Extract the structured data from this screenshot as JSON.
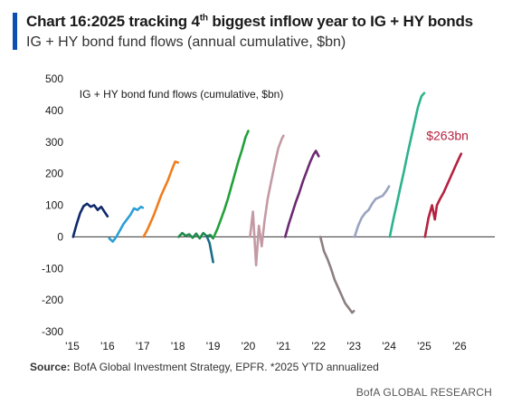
{
  "title": {
    "text": "Chart 16:2025 tracking 4",
    "sup": "th",
    "rest": " biggest inflow year to IG + HY bonds"
  },
  "subtitle": "IG + HY bond fund flows (annual cumulative, $bn)",
  "footer": {
    "label": "Source:",
    "text": " BofA Global Investment Strategy, EPFR. *2025 YTD annualized"
  },
  "brand": "BofA GLOBAL RESEARCH",
  "colors": {
    "accent": "#0b4fb3",
    "highlight": "#b5213e"
  },
  "chart_data": {
    "type": "line",
    "title": "IG + HY bond fund flows (cumulative, $bn)",
    "xlabel": "",
    "ylabel": "",
    "xlim": [
      2015,
      2027
    ],
    "ylim": [
      -300,
      500
    ],
    "yticks": [
      -300,
      -200,
      -100,
      0,
      100,
      200,
      300,
      400,
      500
    ],
    "xticks": [
      {
        "v": 2015,
        "label": "'15"
      },
      {
        "v": 2016,
        "label": "'16"
      },
      {
        "v": 2017,
        "label": "'17"
      },
      {
        "v": 2018,
        "label": "'18"
      },
      {
        "v": 2019,
        "label": "'19"
      },
      {
        "v": 2020,
        "label": "'20"
      },
      {
        "v": 2021,
        "label": "'21"
      },
      {
        "v": 2022,
        "label": "'22"
      },
      {
        "v": 2023,
        "label": "'23"
      },
      {
        "v": 2024,
        "label": "'24"
      },
      {
        "v": 2025,
        "label": "'25"
      },
      {
        "v": 2026,
        "label": "'26"
      }
    ],
    "grid": false,
    "annotation": {
      "text": "$263bn",
      "x": 2025.95,
      "y": 263
    },
    "series": [
      {
        "year": 2015,
        "color": "#0d2a6b",
        "x": [
          2015.02,
          2015.12,
          2015.22,
          2015.32,
          2015.42,
          2015.52,
          2015.62,
          2015.72,
          2015.82,
          2015.92,
          2016.0
        ],
        "y": [
          0,
          40,
          75,
          97,
          105,
          95,
          100,
          85,
          95,
          78,
          65
        ]
      },
      {
        "year": 2016,
        "color": "#2a9fd6",
        "x": [
          2016.05,
          2016.15,
          2016.25,
          2016.35,
          2016.45,
          2016.55,
          2016.65,
          2016.75,
          2016.85,
          2016.95,
          2017.0
        ],
        "y": [
          -5,
          -15,
          0,
          20,
          40,
          55,
          70,
          90,
          85,
          95,
          92
        ]
      },
      {
        "year": 2017,
        "color": "#f07d1e",
        "x": [
          2017.02,
          2017.12,
          2017.22,
          2017.32,
          2017.42,
          2017.52,
          2017.62,
          2017.72,
          2017.82,
          2017.92,
          2018.0
        ],
        "y": [
          0,
          20,
          45,
          70,
          100,
          130,
          155,
          180,
          210,
          238,
          235
        ]
      },
      {
        "year": 2018,
        "color": "#1f8a4c",
        "x": [
          2018.02,
          2018.12,
          2018.22,
          2018.32,
          2018.42,
          2018.52,
          2018.62,
          2018.72,
          2018.82,
          2018.92,
          2019.0
        ],
        "y": [
          0,
          12,
          3,
          8,
          -3,
          10,
          -5,
          12,
          2,
          6,
          -5
        ]
      },
      {
        "year": 2019,
        "color": "#1b6d85",
        "x": [
          2018.82,
          2018.9,
          2019.0
        ],
        "y": [
          2,
          -20,
          -80
        ]
      },
      {
        "year": 2020,
        "color": "#23a03a",
        "x": [
          2019.02,
          2019.12,
          2019.22,
          2019.32,
          2019.42,
          2019.52,
          2019.62,
          2019.72,
          2019.82,
          2019.92,
          2020.0
        ],
        "y": [
          0,
          25,
          55,
          85,
          120,
          160,
          200,
          240,
          275,
          315,
          335
        ]
      },
      {
        "year": 2020,
        "color": "#c39aa3",
        "x": [
          2020.05,
          2020.13,
          2020.22,
          2020.3,
          2020.38,
          2020.46,
          2020.55,
          2020.65,
          2020.75,
          2020.85,
          2020.95,
          2021.0
        ],
        "y": [
          0,
          80,
          -90,
          35,
          -30,
          50,
          120,
          175,
          230,
          280,
          310,
          320
        ]
      },
      {
        "year": 2021,
        "color": "#6b2a72",
        "x": [
          2021.05,
          2021.15,
          2021.25,
          2021.35,
          2021.45,
          2021.55,
          2021.65,
          2021.75,
          2021.85,
          2021.92,
          2022.0
        ],
        "y": [
          0,
          40,
          75,
          110,
          140,
          175,
          205,
          235,
          260,
          272,
          255
        ]
      },
      {
        "year": 2022,
        "color": "#8c7f80",
        "x": [
          2022.05,
          2022.15,
          2022.25,
          2022.35,
          2022.45,
          2022.55,
          2022.65,
          2022.75,
          2022.85,
          2022.95,
          2023.0
        ],
        "y": [
          0,
          -45,
          -70,
          -100,
          -135,
          -160,
          -185,
          -210,
          -225,
          -240,
          -235
        ]
      },
      {
        "year": 2023,
        "color": "#9aa3c0",
        "x": [
          2023.02,
          2023.12,
          2023.22,
          2023.32,
          2023.42,
          2023.52,
          2023.62,
          2023.72,
          2023.82,
          2023.92,
          2024.0
        ],
        "y": [
          0,
          35,
          60,
          75,
          85,
          105,
          120,
          125,
          130,
          145,
          160
        ]
      },
      {
        "year": 2024,
        "color": "#2cb38c",
        "x": [
          2024.02,
          2024.12,
          2024.22,
          2024.32,
          2024.42,
          2024.52,
          2024.62,
          2024.72,
          2024.82,
          2024.92,
          2025.0
        ],
        "y": [
          0,
          55,
          105,
          155,
          205,
          260,
          310,
          360,
          410,
          445,
          455
        ]
      },
      {
        "year": 2025,
        "color": "#b5213e",
        "x": [
          2025.02,
          2025.12,
          2025.22,
          2025.3,
          2025.36,
          2025.45,
          2025.55,
          2025.65,
          2025.75,
          2025.85,
          2025.95,
          2026.05
        ],
        "y": [
          0,
          60,
          100,
          55,
          100,
          120,
          140,
          165,
          190,
          215,
          240,
          263
        ]
      }
    ]
  }
}
